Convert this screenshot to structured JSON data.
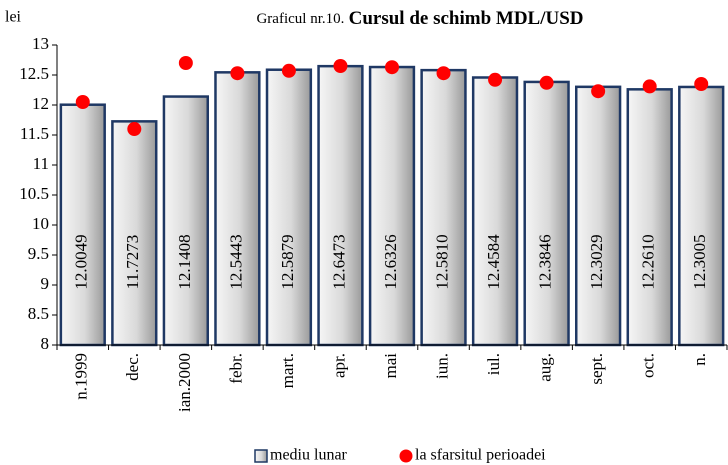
{
  "chart_data": {
    "type": "bar",
    "title": "Graficul nr.10.",
    "title_bold": "Cursul de schimb MDL/USD",
    "ylabel": "lei",
    "categories": [
      "n.1999",
      "dec.",
      "ian.2000",
      "febr.",
      "mart.",
      "apr.",
      "mai",
      "iun.",
      "iul.",
      "aug.",
      "sept.",
      "oct.",
      "n."
    ],
    "series": [
      {
        "name": "mediu lunar",
        "type": "bar",
        "color": "#1f3864",
        "values": [
          12.0049,
          11.7273,
          12.1408,
          12.5443,
          12.5879,
          12.6473,
          12.6326,
          12.581,
          12.4584,
          12.3846,
          12.3029,
          12.261,
          12.3005
        ],
        "value_labels": [
          "12.0049",
          "11.7273",
          "12.1408",
          "12.5443",
          "12.5879",
          "12.6473",
          "12.6326",
          "12.5810",
          "12.4584",
          "12.3846",
          "12.3029",
          "12.2610",
          "12.3005"
        ]
      },
      {
        "name": "la sfarsitul perioadei",
        "type": "scatter",
        "color": "#ff0000",
        "values": [
          12.05,
          11.6,
          12.7,
          12.53,
          12.57,
          12.65,
          12.63,
          12.53,
          12.42,
          12.37,
          12.23,
          12.31,
          12.35
        ]
      }
    ],
    "ylim": [
      8,
      13
    ],
    "yticks": [
      8,
      8.5,
      9,
      9.5,
      10,
      10.5,
      11,
      11.5,
      12,
      12.5,
      13
    ],
    "grid": false
  }
}
